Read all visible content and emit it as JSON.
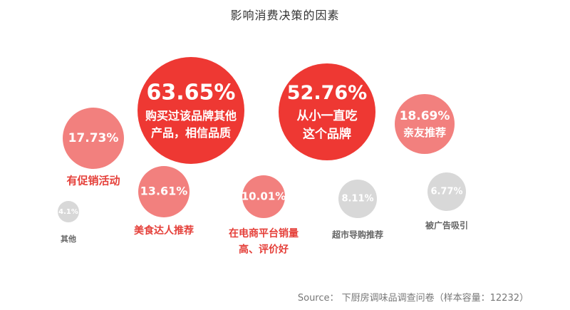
{
  "chart_data": {
    "type": "bubble",
    "title": "影响消费决策的因素",
    "unit": "%",
    "points": [
      {
        "value_label": "63.65%",
        "value": 63.65,
        "label_lines": [
          "购买过该品牌其他",
          "产品，相信品质"
        ],
        "label_inside": true,
        "color": "#EE3833"
      },
      {
        "value_label": "52.76%",
        "value": 52.76,
        "label_lines": [
          "从小一直吃",
          "这个品牌"
        ],
        "label_inside": true,
        "color": "#EE3833"
      },
      {
        "value_label": "18.69%",
        "value": 18.69,
        "label_lines": [
          "亲友推荐"
        ],
        "label_inside": true,
        "color": "#F2807E"
      },
      {
        "value_label": "17.73%",
        "value": 17.73,
        "label_lines": [
          "有促销活动"
        ],
        "label_inside": false,
        "color": "#F2807E",
        "label_color": "#E5403A"
      },
      {
        "value_label": "13.61%",
        "value": 13.61,
        "label_lines": [
          "美食达人推荐"
        ],
        "label_inside": false,
        "color": "#F2807E",
        "label_color": "#E5403A"
      },
      {
        "value_label": "10.01%",
        "value": 10.01,
        "label_lines": [
          "在电商平台销量",
          "高、评价好"
        ],
        "label_inside": false,
        "color": "#F2807E",
        "label_color": "#E5403A"
      },
      {
        "value_label": "8.11%",
        "value": 8.11,
        "label_lines": [
          "超市导购推荐"
        ],
        "label_inside": false,
        "color": "#D8D8D8",
        "label_color": "#666666"
      },
      {
        "value_label": "6.77%",
        "value": 6.77,
        "label_lines": [
          "被广告吸引"
        ],
        "label_inside": false,
        "color": "#D8D8D8",
        "label_color": "#666666"
      },
      {
        "value_label": "4.1%",
        "value": 4.1,
        "label_lines": [
          "其他"
        ],
        "label_inside": false,
        "color": "#D8D8D8",
        "label_color": "#666666"
      }
    ]
  },
  "source": "Source： 下厨房调味品调查问卷（样本容量：12232）"
}
